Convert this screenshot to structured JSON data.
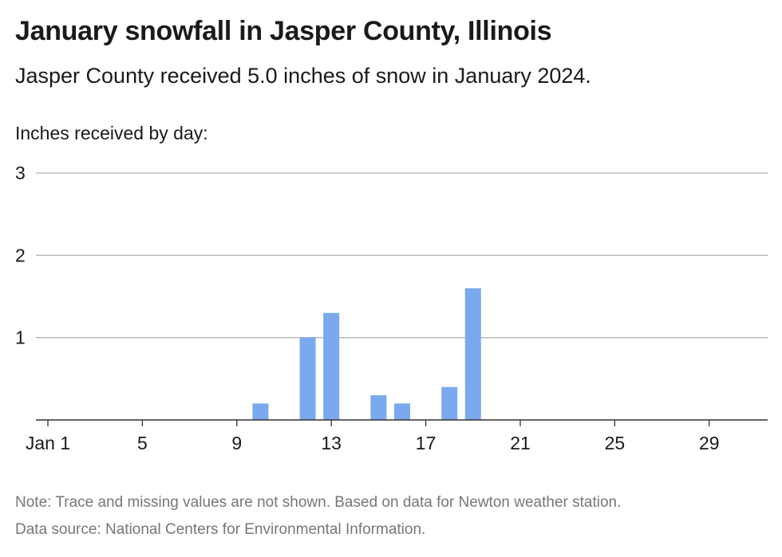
{
  "title": "January snowfall in Jasper County, Illinois",
  "subtitle": "Jasper County received 5.0 inches of snow in January 2024.",
  "notes": {
    "note": "Note: Trace and missing values are not shown. Based on data for Newton weather station.",
    "source": "Data source: National Centers for Environmental Information."
  },
  "colors": {
    "bar": "#7aa9ee",
    "grid": "#b3b3b3",
    "axis": "#333333"
  },
  "chart_data": {
    "type": "bar",
    "ylabel": "Inches received by day:",
    "ylim": [
      0,
      3
    ],
    "yticks": [
      "1",
      "2",
      "3"
    ],
    "xlim": [
      1,
      31
    ],
    "xticks": [
      {
        "day": 1,
        "label": "Jan 1"
      },
      {
        "day": 5,
        "label": "5"
      },
      {
        "day": 9,
        "label": "9"
      },
      {
        "day": 13,
        "label": "13"
      },
      {
        "day": 17,
        "label": "17"
      },
      {
        "day": 21,
        "label": "21"
      },
      {
        "day": 25,
        "label": "25"
      },
      {
        "day": 29,
        "label": "29"
      }
    ],
    "days": [
      10,
      12,
      13,
      15,
      16,
      18,
      19
    ],
    "values": [
      0.2,
      1.0,
      1.3,
      0.3,
      0.2,
      0.4,
      1.6
    ],
    "grid": true
  }
}
